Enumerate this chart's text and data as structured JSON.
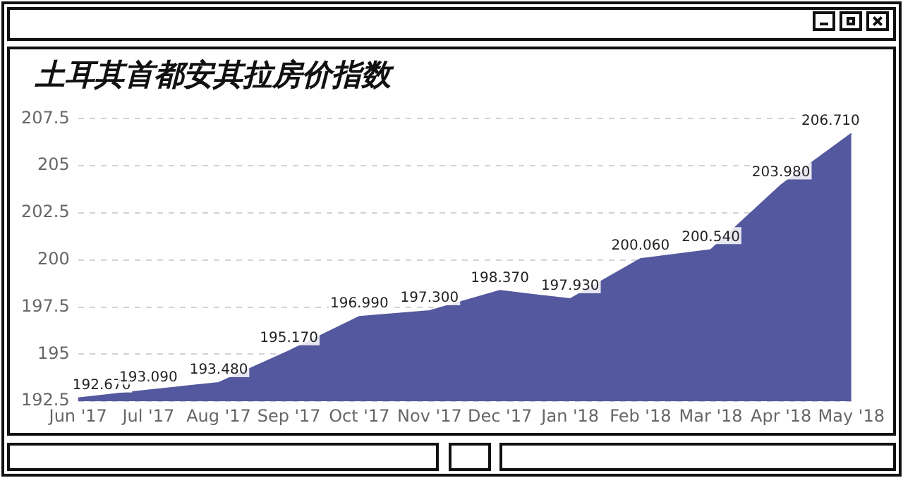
{
  "chart_data": {
    "type": "area",
    "title": "土耳其首都安其拉房价指数",
    "categories": [
      "Jun '17",
      "Jul '17",
      "Aug '17",
      "Sep '17",
      "Oct '17",
      "Nov '17",
      "Dec '17",
      "Jan '18",
      "Feb '18",
      "Mar '18",
      "Apr '18",
      "May '18"
    ],
    "values": [
      192.67,
      193.09,
      193.48,
      195.17,
      196.99,
      197.3,
      198.37,
      197.93,
      200.06,
      200.54,
      203.98,
      206.71
    ],
    "value_labels": [
      "192.670",
      "193.090",
      "193.480",
      "195.170",
      "196.990",
      "197.300",
      "198.370",
      "197.930",
      "200.060",
      "200.540",
      "203.980",
      "206.710"
    ],
    "color": "#54589e",
    "ylim": [
      192.5,
      207.5
    ],
    "yticks": [
      192.5,
      195,
      197.5,
      200,
      202.5,
      205,
      207.5
    ],
    "grid": "y",
    "marker": "none"
  }
}
